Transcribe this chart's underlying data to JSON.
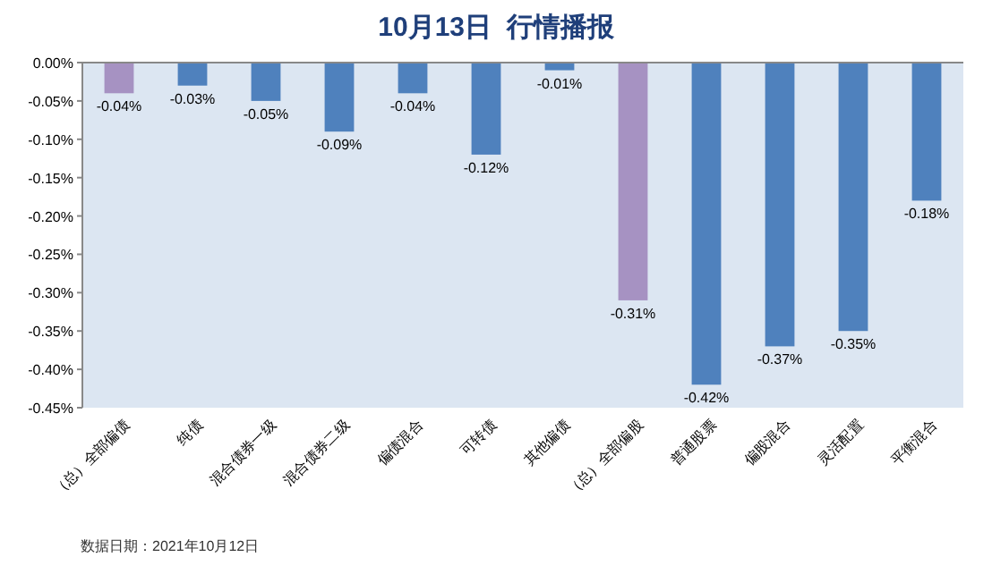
{
  "chart_data": {
    "type": "bar",
    "title": "10月13日  行情播报",
    "categories": [
      "（总）全部偏债",
      "纯债",
      "混合债券一级",
      "混合债券二级",
      "偏债混合",
      "可转债",
      "其他偏债",
      "（总）全部偏股",
      "普通股票",
      "偏股混合",
      "灵活配置",
      "平衡混合"
    ],
    "values": [
      -0.04,
      -0.03,
      -0.05,
      -0.09,
      -0.04,
      -0.12,
      -0.01,
      -0.31,
      -0.42,
      -0.37,
      -0.35,
      -0.18
    ],
    "colors": [
      "#a692c2",
      "#4f81bd",
      "#4f81bd",
      "#4f81bd",
      "#4f81bd",
      "#4f81bd",
      "#4f81bd",
      "#a692c2",
      "#4f81bd",
      "#4f81bd",
      "#4f81bd",
      "#4f81bd"
    ],
    "value_labels": [
      "-0.04%",
      "-0.03%",
      "-0.05%",
      "-0.09%",
      "-0.04%",
      "-0.12%",
      "-0.01%",
      "-0.31%",
      "-0.42%",
      "-0.37%",
      "-0.35%",
      "-0.18%"
    ],
    "ylim": [
      -0.45,
      0
    ],
    "yticks": [
      {
        "value": 0,
        "label": "0.00%"
      },
      {
        "value": -0.05,
        "label": "-0.05%"
      },
      {
        "value": -0.1,
        "label": "-0.10%"
      },
      {
        "value": -0.15,
        "label": "-0.15%"
      },
      {
        "value": -0.2,
        "label": "-0.20%"
      },
      {
        "value": -0.25,
        "label": "-0.25%"
      },
      {
        "value": -0.3,
        "label": "-0.30%"
      },
      {
        "value": -0.35,
        "label": "-0.35%"
      },
      {
        "value": -0.4,
        "label": "-0.40%"
      },
      {
        "value": -0.45,
        "label": "-0.45%"
      }
    ],
    "grid": false,
    "annotations": [
      "数据日期：2021年10月12日"
    ]
  }
}
